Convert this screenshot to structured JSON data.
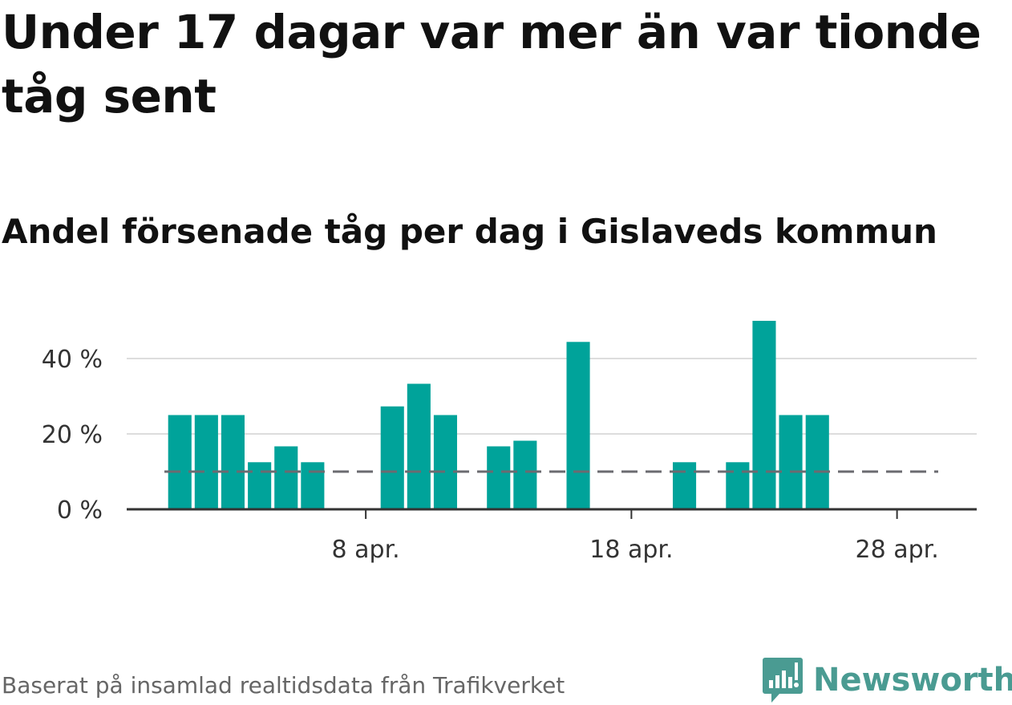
{
  "title": "Under 17 dagar var mer än var tionde tåg sent",
  "subtitle": "Andel försenade tåg per dag i Gislaveds kommun",
  "source": "Baserat på insamlad realtidsdata från Trafikverket",
  "brand": "Newsworthy",
  "colors": {
    "bar": "#00a39a",
    "reference_line": "#6b6b70",
    "grid": "#dddddd",
    "axis": "#333333",
    "brand": "#4a9b92"
  },
  "chart_data": {
    "type": "bar",
    "title": "Andel försenade tåg per dag i Gislaveds kommun",
    "xlabel": "",
    "ylabel": "",
    "y_unit": "%",
    "ylim": [
      0,
      50
    ],
    "yticks": [
      0,
      20,
      40
    ],
    "ytick_labels": [
      "0 %",
      "20 %",
      "40 %"
    ],
    "xtick_dates": [
      "2021-04-08",
      "2021-04-18",
      "2021-04-28"
    ],
    "xtick_labels": [
      "8 apr.",
      "18 apr.",
      "28 apr."
    ],
    "x_range": [
      "2021-03-30",
      "2021-05-01"
    ],
    "reference_line": {
      "value": 10,
      "style": "dashed"
    },
    "grid": true,
    "bars": [
      {
        "date": "2021-04-01",
        "value": 25
      },
      {
        "date": "2021-04-02",
        "value": 25
      },
      {
        "date": "2021-04-03",
        "value": 25
      },
      {
        "date": "2021-04-04",
        "value": 12.5
      },
      {
        "date": "2021-04-05",
        "value": 16.7
      },
      {
        "date": "2021-04-06",
        "value": 12.5
      },
      {
        "date": "2021-04-07",
        "value": 0
      },
      {
        "date": "2021-04-08",
        "value": 0
      },
      {
        "date": "2021-04-09",
        "value": 27.3
      },
      {
        "date": "2021-04-10",
        "value": 33.3
      },
      {
        "date": "2021-04-11",
        "value": 25
      },
      {
        "date": "2021-04-12",
        "value": 0
      },
      {
        "date": "2021-04-13",
        "value": 16.7
      },
      {
        "date": "2021-04-14",
        "value": 18.2
      },
      {
        "date": "2021-04-15",
        "value": 0
      },
      {
        "date": "2021-04-16",
        "value": 44.4
      },
      {
        "date": "2021-04-17",
        "value": 0
      },
      {
        "date": "2021-04-18",
        "value": 0
      },
      {
        "date": "2021-04-19",
        "value": 0
      },
      {
        "date": "2021-04-20",
        "value": 12.5
      },
      {
        "date": "2021-04-21",
        "value": 0
      },
      {
        "date": "2021-04-22",
        "value": 12.5
      },
      {
        "date": "2021-04-23",
        "value": 50
      },
      {
        "date": "2021-04-24",
        "value": 25
      },
      {
        "date": "2021-04-25",
        "value": 25
      },
      {
        "date": "2021-04-26",
        "value": 0
      },
      {
        "date": "2021-04-27",
        "value": 0
      },
      {
        "date": "2021-04-28",
        "value": 0
      },
      {
        "date": "2021-04-29",
        "value": 0
      }
    ]
  }
}
